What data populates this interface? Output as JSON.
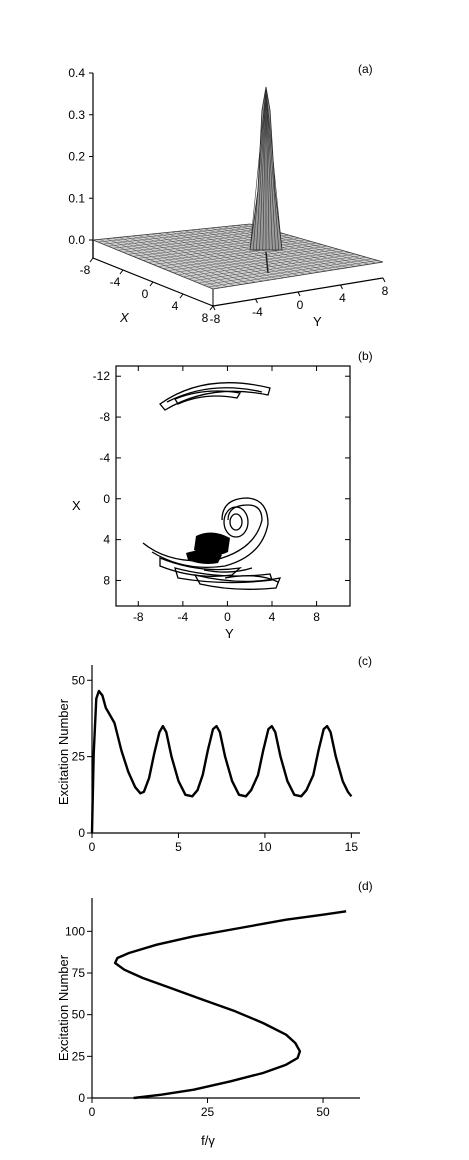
{
  "chart_data": [
    {
      "type": "surface",
      "panel_label": "(a)",
      "xlabel": "X",
      "ylabel": "Y",
      "x_ticks": [
        "-8",
        "-4",
        "0",
        "4",
        "8"
      ],
      "y_ticks": [
        "-8",
        "-4",
        "0",
        "4",
        "8"
      ],
      "z_ticks": [
        "0.0",
        "0.1",
        "0.2",
        "0.3",
        "0.4"
      ],
      "zlim": [
        0,
        0.4
      ],
      "peak": {
        "x": 0,
        "y": 2,
        "z": 0.36
      }
    },
    {
      "type": "contour",
      "panel_label": "(b)",
      "xlabel": "Y",
      "ylabel": "X",
      "x_ticks": [
        "-8",
        "-4",
        "0",
        "4",
        "8"
      ],
      "y_ticks": [
        "-12",
        "-8",
        "-4",
        "0",
        "4",
        "8"
      ],
      "xlim": [
        -10,
        11
      ],
      "ylim": [
        -13,
        10.5
      ],
      "y_inverted": true
    },
    {
      "type": "line",
      "panel_label": "(c)",
      "xlabel": "",
      "ylabel": "Excitation Number",
      "x_ticks": [
        "0",
        "5",
        "10",
        "15"
      ],
      "y_ticks": [
        "0",
        "25",
        "50"
      ],
      "xlim": [
        0,
        15.5
      ],
      "ylim": [
        0,
        55
      ],
      "series": [
        {
          "x": [
            0,
            0.1,
            0.25,
            0.4,
            0.6,
            0.8,
            1.0,
            1.3,
            1.7,
            2.1,
            2.5,
            2.8,
            3.0,
            3.3,
            3.6,
            3.9,
            4.1,
            4.3,
            4.6,
            5.0,
            5.4,
            5.8,
            6.1,
            6.4,
            6.7,
            7.0,
            7.2,
            7.4,
            7.7,
            8.1,
            8.5,
            8.9,
            9.2,
            9.6,
            9.9,
            10.2,
            10.4,
            10.6,
            10.9,
            11.3,
            11.7,
            12.1,
            12.4,
            12.8,
            13.1,
            13.4,
            13.6,
            13.8,
            14.1,
            14.5,
            14.8,
            15.0
          ],
          "y": [
            0,
            26,
            44,
            46.5,
            45,
            41,
            39,
            36,
            27,
            20,
            15,
            13,
            13.5,
            18,
            26,
            33,
            35,
            33,
            25,
            17,
            12.5,
            12,
            14,
            19,
            27,
            34,
            35,
            33,
            25,
            17,
            12.5,
            12,
            14,
            19,
            27,
            34,
            35,
            33,
            25,
            17,
            12.5,
            12,
            14,
            19,
            27,
            34,
            35,
            33,
            25,
            17,
            13.5,
            12
          ]
        }
      ]
    },
    {
      "type": "line",
      "panel_label": "(d)",
      "xlabel": "f/γ",
      "ylabel": "Excitation Number",
      "x_ticks": [
        "0",
        "25",
        "50"
      ],
      "y_ticks": [
        "0",
        "25",
        "50",
        "75",
        "100"
      ],
      "xlim": [
        0,
        58
      ],
      "ylim": [
        0,
        120
      ],
      "series": [
        {
          "x": [
            9,
            15,
            22,
            30,
            37,
            42,
            44.5,
            45,
            44,
            42,
            37,
            31,
            24,
            17,
            11,
            7,
            5,
            5.5,
            8,
            14,
            22,
            32,
            42,
            50,
            55
          ],
          "y": [
            0,
            2,
            5,
            10,
            15,
            20,
            24,
            28,
            33,
            38,
            45,
            52,
            59,
            66,
            72,
            77,
            81,
            84,
            87,
            92,
            97,
            102,
            107,
            110,
            112
          ]
        }
      ]
    }
  ]
}
